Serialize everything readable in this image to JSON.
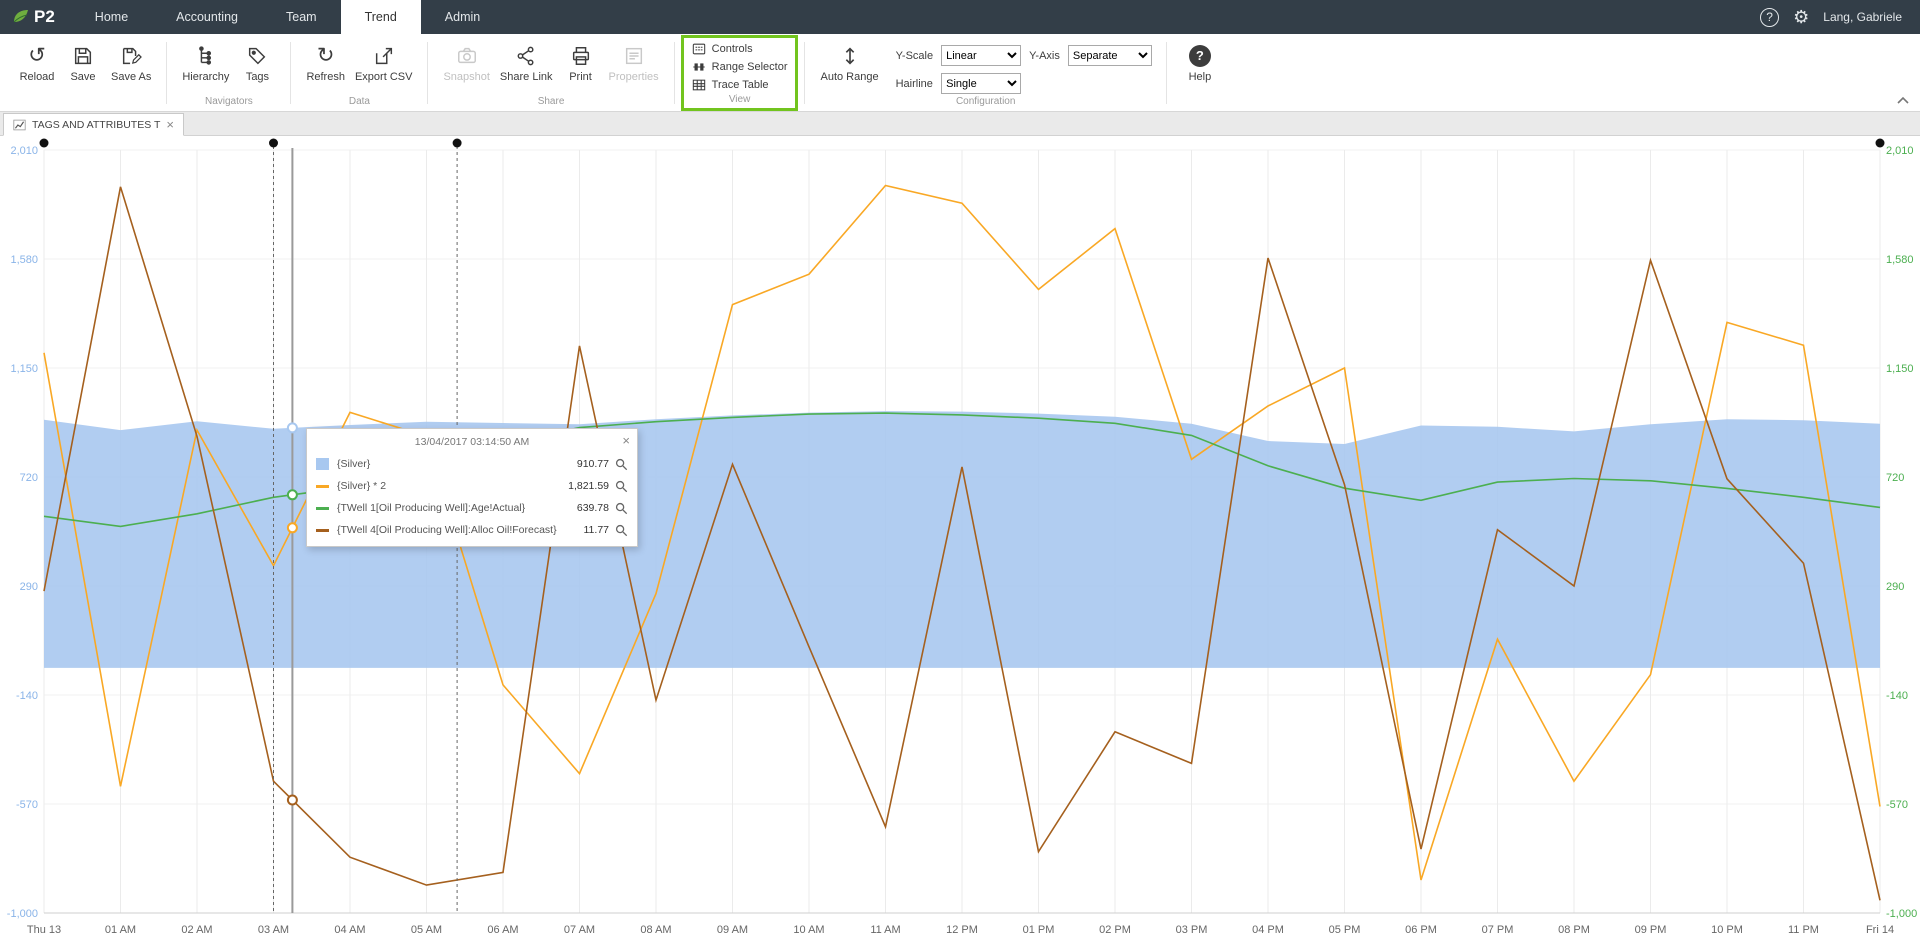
{
  "colors": {
    "topbar_bg": "#333e48",
    "accent_green_box": "#72c41e",
    "area_blue": "#a8c8f0",
    "axis_left": "#8ab4e8",
    "axis_right": "#4caf50",
    "series_orange": "#f9a825",
    "series_green": "#4caf50",
    "series_brown": "#a5601e"
  },
  "icons": {
    "reload_glyph": "↺",
    "refresh_glyph": "↻",
    "gear_glyph": "⚙",
    "help_glyph": "?",
    "close_glyph": "×"
  },
  "topbar": {
    "logo_text": "P2",
    "menu": [
      {
        "label": "Home"
      },
      {
        "label": "Accounting"
      },
      {
        "label": "Team"
      },
      {
        "label": "Trend",
        "active": true
      },
      {
        "label": "Admin"
      }
    ],
    "user_name": "Lang, Gabriele"
  },
  "ribbon": {
    "quick": [
      {
        "label": "Reload"
      },
      {
        "label": "Save"
      },
      {
        "label": "Save As"
      }
    ],
    "groups": [
      {
        "label": "Navigators",
        "items": [
          {
            "label": "Hierarchy"
          },
          {
            "label": "Tags"
          }
        ]
      },
      {
        "label": "Data",
        "items": [
          {
            "label": "Refresh"
          },
          {
            "label": "Export CSV"
          }
        ]
      },
      {
        "label": "Share",
        "items": [
          {
            "label": "Snapshot",
            "disabled": true
          },
          {
            "label": "Share Link"
          },
          {
            "label": "Print"
          },
          {
            "label": "Properties",
            "disabled": true
          }
        ]
      },
      {
        "label": "View",
        "highlighted": true,
        "items": [
          {
            "label": "Controls"
          },
          {
            "label": "Range Selector"
          },
          {
            "label": "Trace Table"
          }
        ]
      },
      {
        "label": "Configuration",
        "items": [
          {
            "label": "Auto Range"
          }
        ],
        "fields": [
          {
            "label": "Y-Scale",
            "value": "Linear"
          },
          {
            "label": "Hairline",
            "value": "Single"
          },
          {
            "label": "Y-Axis",
            "value": "Separate"
          }
        ]
      }
    ],
    "help_label": "Help"
  },
  "tabbar": {
    "tabs": [
      {
        "label": "TAGS AND ATTRIBUTES T"
      }
    ]
  },
  "tooltip": {
    "timestamp": "13/04/2017 03:14:50 AM",
    "rows": [
      {
        "name": "{Silver}",
        "value": "910.77",
        "color": "#a8c8f0",
        "swatch": "area"
      },
      {
        "name": "{Silver} * 2",
        "value": "1,821.59",
        "color": "#f9a825",
        "swatch": "line"
      },
      {
        "name": "{TWell 1[Oil Producing Well]:Age!Actual}",
        "value": "639.78",
        "color": "#4caf50",
        "swatch": "line"
      },
      {
        "name": "{TWell 4[Oil Producing Well]:Alloc Oil!Forecast}",
        "value": "11.77",
        "color": "#a5601e",
        "swatch": "line"
      }
    ]
  },
  "chart_data": {
    "type": "line",
    "title": "",
    "xlabel": "",
    "ylabel": "",
    "ylim": [
      -1000,
      2010
    ],
    "grid": true,
    "legend_position": "none",
    "x_labels": [
      "Thu 13",
      "01 AM",
      "02 AM",
      "03 AM",
      "04 AM",
      "05 AM",
      "06 AM",
      "07 AM",
      "08 AM",
      "09 AM",
      "10 AM",
      "11 AM",
      "12 PM",
      "01 PM",
      "02 PM",
      "03 PM",
      "04 PM",
      "05 PM",
      "06 PM",
      "07 PM",
      "08 PM",
      "09 PM",
      "10 PM",
      "11 PM",
      "Fri 14"
    ],
    "y_ticks": [
      "2,010",
      "1,580",
      "1,150",
      "720",
      "290",
      "-140",
      "-570",
      "-1,000"
    ],
    "y_tick_values": [
      2010,
      1580,
      1150,
      720,
      290,
      -140,
      -570,
      -1000
    ],
    "series": [
      {
        "name": "{Silver}",
        "type": "area",
        "color": "#a8c8f0",
        "baseline": -33,
        "values": [
          946,
          905,
          940,
          910,
          925,
          938,
          933,
          928,
          948,
          963,
          974,
          980,
          978,
          970,
          958,
          930,
          862,
          850,
          923,
          918,
          900,
          928,
          948,
          944,
          930
        ]
      },
      {
        "name": "{Silver} * 2",
        "type": "line",
        "color": "#f9a825",
        "values": [
          1210,
          -500,
          905,
          370,
          975,
          880,
          -100,
          -450,
          260,
          1400,
          1520,
          1870,
          1800,
          1460,
          1700,
          790,
          1000,
          1150,
          -870,
          80,
          -480,
          -60,
          1330,
          1240,
          -580
        ]
      },
      {
        "name": "{TWell 1[Oil Producing Well]:Age!Actual}",
        "type": "line",
        "color": "#4caf50",
        "values": [
          565,
          525,
          575,
          640,
          680,
          760,
          850,
          915,
          938,
          955,
          968,
          972,
          965,
          952,
          932,
          884,
          764,
          676,
          628,
          700,
          714,
          705,
          675,
          640,
          600
        ]
      },
      {
        "name": "{TWell 4[Oil Producing Well]:Alloc Oil!Forecast}",
        "type": "line",
        "color": "#a5601e",
        "values": [
          270,
          1865,
          880,
          -480,
          -780,
          -890,
          -840,
          1237,
          -160,
          770,
          50,
          -660,
          760,
          -758,
          -285,
          -410,
          1584,
          690,
          -748,
          512,
          290,
          1575,
          713,
          380,
          -950
        ]
      }
    ],
    "hairline": {
      "hour": 3.2472,
      "timestamp": "13/04/2017 03:14:50 AM"
    },
    "range_selector_hours": [
      3.0,
      5.4
    ]
  }
}
